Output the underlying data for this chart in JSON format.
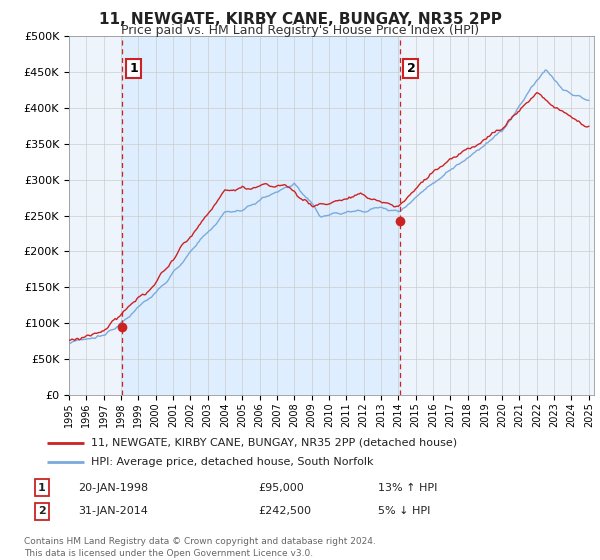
{
  "title": "11, NEWGATE, KIRBY CANE, BUNGAY, NR35 2PP",
  "subtitle": "Price paid vs. HM Land Registry's House Price Index (HPI)",
  "legend_line1": "11, NEWGATE, KIRBY CANE, BUNGAY, NR35 2PP (detached house)",
  "legend_line2": "HPI: Average price, detached house, South Norfolk",
  "annotation1_label": "1",
  "annotation1_date": "20-JAN-1998",
  "annotation1_price": "£95,000",
  "annotation1_hpi": "13% ↑ HPI",
  "annotation2_label": "2",
  "annotation2_date": "31-JAN-2014",
  "annotation2_price": "£242,500",
  "annotation2_hpi": "5% ↓ HPI",
  "footer": "Contains HM Land Registry data © Crown copyright and database right 2024.\nThis data is licensed under the Open Government Licence v3.0.",
  "price_color": "#cc2222",
  "hpi_color": "#7aaadd",
  "vline_color": "#cc2222",
  "marker_color": "#cc2222",
  "shade_color": "#ddeeff",
  "background_color": "#ffffff",
  "chart_bg_color": "#eef4fc",
  "grid_color": "#cccccc",
  "ylim": [
    0,
    500000
  ],
  "yticks": [
    0,
    50000,
    100000,
    150000,
    200000,
    250000,
    300000,
    350000,
    400000,
    450000,
    500000
  ],
  "sale1_year": 1998.07,
  "sale1_price": 95000,
  "sale2_year": 2014.08,
  "sale2_price": 242500,
  "xmin": 1995,
  "xmax": 2025.3
}
